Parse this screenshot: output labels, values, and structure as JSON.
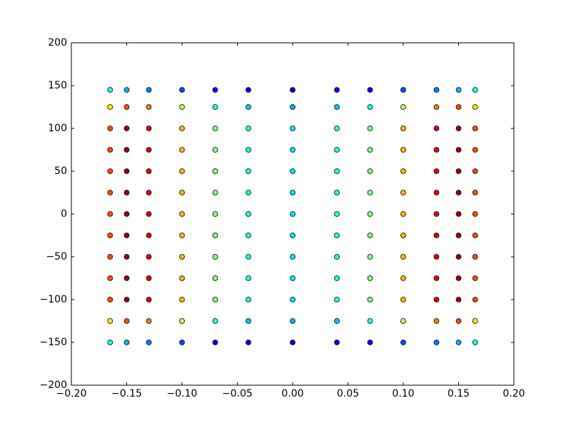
{
  "chart_data": {
    "type": "scatter",
    "xlim": [
      -0.2,
      0.2
    ],
    "ylim": [
      -200,
      200
    ],
    "xticks": [
      {
        "value": -0.2,
        "label": "−0.20"
      },
      {
        "value": -0.15,
        "label": "−0.15"
      },
      {
        "value": -0.1,
        "label": "−0.10"
      },
      {
        "value": -0.05,
        "label": "−0.05"
      },
      {
        "value": 0,
        "label": "0.00"
      },
      0.05,
      {
        "value": 0.1,
        "label": "0.10"
      },
      0.15,
      {
        "value": 0.2,
        "label": "0.20"
      }
    ],
    "yticks": [
      {
        "value": -200,
        "label": "−200"
      },
      {
        "value": -150,
        "label": "−150"
      },
      {
        "value": -100,
        "label": "−100"
      },
      {
        "value": -50,
        "label": "−50"
      },
      0,
      50,
      100,
      150,
      200
    ],
    "cmap": "jet",
    "clim": [
      0,
      1
    ],
    "grid": false,
    "x": [
      -0.165,
      -0.15,
      -0.13,
      -0.1,
      -0.07,
      -0.04,
      0,
      0.04,
      0.07,
      0.1,
      0.13,
      0.15,
      0.165,
      -0.165,
      -0.15,
      -0.13,
      -0.1,
      -0.07,
      -0.04,
      0,
      0.04,
      0.07,
      0.1,
      0.13,
      0.15,
      0.165,
      -0.165,
      -0.15,
      -0.13,
      -0.1,
      -0.07,
      -0.04,
      0,
      0.04,
      0.07,
      0.1,
      0.13,
      0.15,
      0.165,
      -0.165,
      -0.15,
      -0.13,
      -0.1,
      -0.07,
      -0.04,
      0,
      0.04,
      0.07,
      0.1,
      0.13,
      0.15,
      0.165,
      -0.165,
      -0.15,
      -0.13,
      -0.1,
      -0.07,
      -0.04,
      0,
      0.04,
      0.07,
      0.1,
      0.13,
      0.15,
      0.165,
      -0.165,
      -0.15,
      -0.13,
      -0.1,
      -0.07,
      -0.04,
      0,
      0.04,
      0.07,
      0.1,
      0.13,
      0.15,
      0.165,
      -0.165,
      -0.15,
      -0.13,
      -0.1,
      -0.07,
      -0.04,
      0,
      0.04,
      0.07,
      0.1,
      0.13,
      0.15,
      0.165,
      -0.165,
      -0.15,
      -0.13,
      -0.1,
      -0.07,
      -0.04,
      0,
      0.04,
      0.07,
      0.1,
      0.13,
      0.15,
      0.165,
      -0.165,
      -0.15,
      -0.13,
      -0.1,
      -0.07,
      -0.04,
      0,
      0.04,
      0.07,
      0.1,
      0.13,
      0.15,
      0.165,
      -0.165,
      -0.15,
      -0.13,
      -0.1,
      -0.07,
      -0.04,
      0,
      0.04,
      0.07,
      0.1,
      0.13,
      0.15,
      0.165,
      -0.165,
      -0.15,
      -0.13,
      -0.1,
      -0.07,
      -0.04,
      0,
      0.04,
      0.07,
      0.1,
      0.13,
      0.15,
      0.165,
      -0.165,
      -0.15,
      -0.13,
      -0.1,
      -0.07,
      -0.04,
      0,
      0.04,
      0.07,
      0.1,
      0.13,
      0.15,
      0.165,
      -0.165,
      -0.15,
      -0.13,
      -0.1,
      -0.07,
      -0.04,
      0,
      0.04,
      0.07,
      0.1,
      0.13,
      0.15,
      0.165
    ],
    "y": [
      -150,
      -150,
      -150,
      -150,
      -150,
      -150,
      -150,
      -150,
      -150,
      -150,
      -150,
      -150,
      -150,
      -125,
      -125,
      -125,
      -125,
      -125,
      -125,
      -125,
      -125,
      -125,
      -125,
      -125,
      -125,
      -125,
      -100,
      -100,
      -100,
      -100,
      -100,
      -100,
      -100,
      -100,
      -100,
      -100,
      -100,
      -100,
      -100,
      -75,
      -75,
      -75,
      -75,
      -75,
      -75,
      -75,
      -75,
      -75,
      -75,
      -75,
      -75,
      -75,
      -50,
      -50,
      -50,
      -50,
      -50,
      -50,
      -50,
      -50,
      -50,
      -50,
      -50,
      -50,
      -50,
      -25,
      -25,
      -25,
      -25,
      -25,
      -25,
      -25,
      -25,
      -25,
      -25,
      -25,
      -25,
      -25,
      0,
      0,
      0,
      0,
      0,
      0,
      0,
      0,
      0,
      0,
      0,
      0,
      0,
      25,
      25,
      25,
      25,
      25,
      25,
      25,
      25,
      25,
      25,
      25,
      25,
      25,
      50,
      50,
      50,
      50,
      50,
      50,
      50,
      50,
      50,
      50,
      50,
      50,
      50,
      75,
      75,
      75,
      75,
      75,
      75,
      75,
      75,
      75,
      75,
      75,
      75,
      75,
      100,
      100,
      100,
      100,
      100,
      100,
      100,
      100,
      100,
      100,
      100,
      100,
      100,
      125,
      125,
      125,
      125,
      125,
      125,
      125,
      125,
      125,
      125,
      125,
      125,
      125,
      145,
      145,
      145,
      145,
      145,
      145,
      145,
      145,
      145,
      145,
      145,
      145,
      145
    ],
    "c": [
      0.4,
      0.3,
      0.25,
      0.2,
      0.12,
      0.1,
      0.08,
      0.1,
      0.12,
      0.2,
      0.25,
      0.3,
      0.4,
      0.65,
      0.8,
      0.75,
      0.55,
      0.4,
      0.32,
      0.3,
      0.32,
      0.4,
      0.55,
      0.75,
      0.8,
      0.65,
      0.8,
      0.97,
      0.9,
      0.7,
      0.5,
      0.4,
      0.35,
      0.4,
      0.5,
      0.7,
      0.9,
      0.97,
      0.8,
      0.8,
      0.97,
      0.9,
      0.7,
      0.5,
      0.4,
      0.35,
      0.4,
      0.5,
      0.7,
      0.9,
      0.97,
      0.8,
      0.8,
      0.97,
      0.9,
      0.7,
      0.5,
      0.4,
      0.35,
      0.4,
      0.5,
      0.7,
      0.9,
      0.97,
      0.8,
      0.8,
      0.97,
      0.9,
      0.7,
      0.5,
      0.4,
      0.35,
      0.4,
      0.5,
      0.7,
      0.9,
      0.97,
      0.8,
      0.8,
      0.97,
      0.9,
      0.7,
      0.5,
      0.4,
      0.35,
      0.4,
      0.5,
      0.7,
      0.9,
      0.97,
      0.8,
      0.8,
      0.97,
      0.9,
      0.7,
      0.5,
      0.4,
      0.35,
      0.4,
      0.5,
      0.7,
      0.9,
      0.97,
      0.8,
      0.8,
      0.97,
      0.9,
      0.7,
      0.5,
      0.4,
      0.35,
      0.4,
      0.5,
      0.7,
      0.9,
      0.97,
      0.8,
      0.8,
      0.97,
      0.9,
      0.7,
      0.5,
      0.4,
      0.35,
      0.4,
      0.5,
      0.7,
      0.9,
      0.97,
      0.8,
      0.8,
      0.97,
      0.9,
      0.7,
      0.5,
      0.4,
      0.35,
      0.4,
      0.5,
      0.7,
      0.9,
      0.97,
      0.8,
      0.65,
      0.8,
      0.75,
      0.55,
      0.4,
      0.32,
      0.3,
      0.32,
      0.4,
      0.55,
      0.75,
      0.8,
      0.65,
      0.4,
      0.3,
      0.25,
      0.2,
      0.12,
      0.1,
      0.08,
      0.1,
      0.12,
      0.2,
      0.25,
      0.3,
      0.4
    ]
  }
}
